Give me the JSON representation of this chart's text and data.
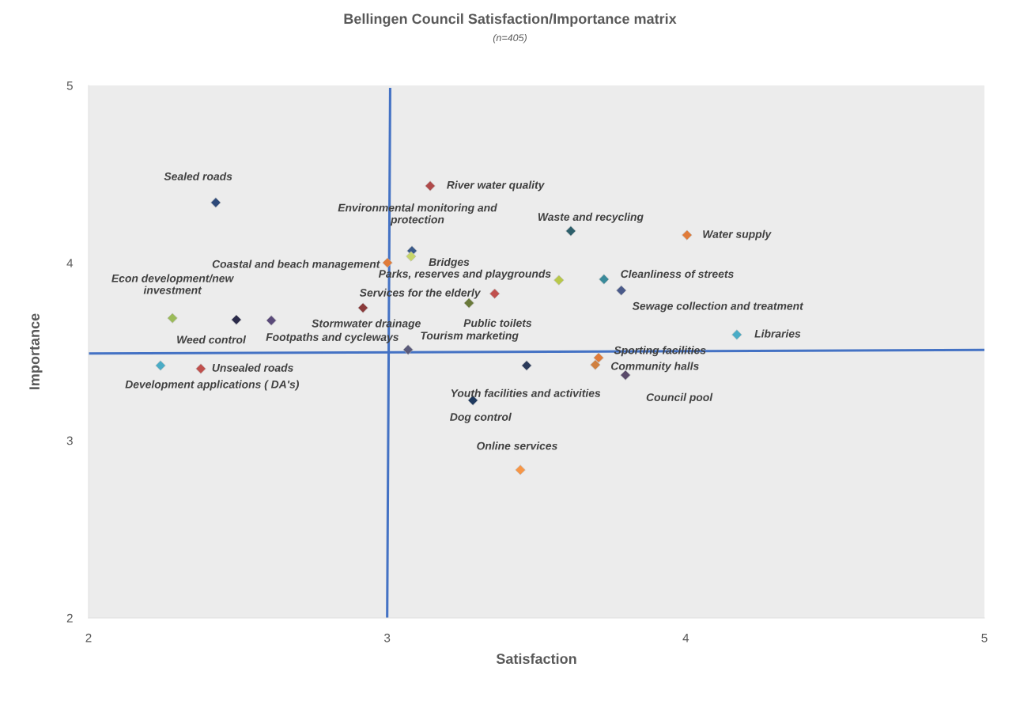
{
  "chart_data": {
    "type": "scatter",
    "title": "Bellingen Council Satisfaction/Importance matrix",
    "subtitle": "(n=405)",
    "xlabel": "Satisfaction",
    "ylabel": "Importance",
    "xlim": [
      2,
      5
    ],
    "ylim": [
      2,
      5
    ],
    "xticks": [
      2,
      3,
      4,
      5
    ],
    "yticks": [
      2,
      3,
      4,
      5
    ],
    "grid": false,
    "legend": false,
    "marker": "diamond",
    "series": [
      {
        "x": [
          2.426,
          3.144,
          3.615,
          4.004,
          3.083,
          3.08,
          3.001,
          3.575,
          3.726,
          3.784,
          3.36,
          3.274,
          2.281,
          2.495,
          2.612,
          2.919,
          4.171,
          3.07,
          3.708,
          3.697,
          3.467,
          2.241,
          2.376,
          3.798,
          3.287,
          3.446
        ],
        "values": [
          4.34,
          4.434,
          4.18,
          4.157,
          4.068,
          4.037,
          4.001,
          3.903,
          3.908,
          3.845,
          3.827,
          3.774,
          3.689,
          3.68,
          3.676,
          3.747,
          3.596,
          3.511,
          3.466,
          3.426,
          3.422,
          3.422,
          3.404,
          3.368,
          3.226,
          2.834
        ],
        "colors": [
          "#2e4a7a",
          "#b04a4a",
          "#2d5f6b",
          "#e07b39",
          "#3a5a8a",
          "#c8d66a",
          "#e07b39",
          "#b8c84a",
          "#3a8a9a",
          "#4a5a8a",
          "#c0504d",
          "#6a7a3a",
          "#9bbb59",
          "#2a2a4a",
          "#5a4a7a",
          "#8a3a3a",
          "#4aacc6",
          "#5a5a7a",
          "#e07b39",
          "#d08040",
          "#2a3a5a",
          "#4aacc6",
          "#c0504d",
          "#5a4a6a",
          "#1f3a5f",
          "#f79646"
        ]
      },
      {
        "type": "line",
        "marker": "none",
        "color": "#4472c4",
        "x": [
          3.01,
          3.0
        ],
        "values": [
          4.98,
          2.0
        ]
      },
      {
        "type": "line",
        "marker": "none",
        "color": "#4472c4",
        "x": [
          2.0,
          5.0
        ],
        "values": [
          3.49,
          3.51
        ]
      }
    ],
    "annotations": [
      {
        "text": "Sealed roads",
        "x": 2.426,
        "y": 4.34
      },
      {
        "text": "River water quality",
        "x": 3.144,
        "y": 4.434
      },
      {
        "text": "Waste and recycling",
        "x": 3.615,
        "y": 4.18
      },
      {
        "text": "Water supply",
        "x": 4.004,
        "y": 4.157
      },
      {
        "text": "Environmental monitoring and\nprotection",
        "x": 3.083,
        "y": 4.068
      },
      {
        "text": "Bridges",
        "x": 3.08,
        "y": 4.037
      },
      {
        "text": "Coastal and beach management",
        "x": 3.001,
        "y": 4.001
      },
      {
        "text": "Parks, reserves and playgrounds",
        "x": 3.575,
        "y": 3.903
      },
      {
        "text": "Cleanliness of streets",
        "x": 3.726,
        "y": 3.908
      },
      {
        "text": "Sewage collection and treatment",
        "x": 3.784,
        "y": 3.845
      },
      {
        "text": "Services for the elderly",
        "x": 3.36,
        "y": 3.827
      },
      {
        "text": "Public toilets",
        "x": 3.274,
        "y": 3.774
      },
      {
        "text": "Econ development/new\ninvestment",
        "x": 2.281,
        "y": 3.689
      },
      {
        "text": "Weed control",
        "x": 2.495,
        "y": 3.68
      },
      {
        "text": "Footpaths and cycleways",
        "x": 2.612,
        "y": 3.676
      },
      {
        "text": "Stormwater drainage",
        "x": 2.919,
        "y": 3.747
      },
      {
        "text": "Libraries",
        "x": 4.171,
        "y": 3.596
      },
      {
        "text": "Tourism marketing",
        "x": 3.07,
        "y": 3.511
      },
      {
        "text": "Sporting facilities",
        "x": 3.708,
        "y": 3.466
      },
      {
        "text": "Community halls",
        "x": 3.697,
        "y": 3.426
      },
      {
        "text": "Youth facilities and activities",
        "x": 3.467,
        "y": 3.422
      },
      {
        "text": "Development applications ( DA's)",
        "x": 2.241,
        "y": 3.422
      },
      {
        "text": "Unsealed roads",
        "x": 2.376,
        "y": 3.404
      },
      {
        "text": "Council pool",
        "x": 3.798,
        "y": 3.368
      },
      {
        "text": "Dog control",
        "x": 3.287,
        "y": 3.226
      },
      {
        "text": "Online services",
        "x": 3.446,
        "y": 2.834
      }
    ]
  }
}
